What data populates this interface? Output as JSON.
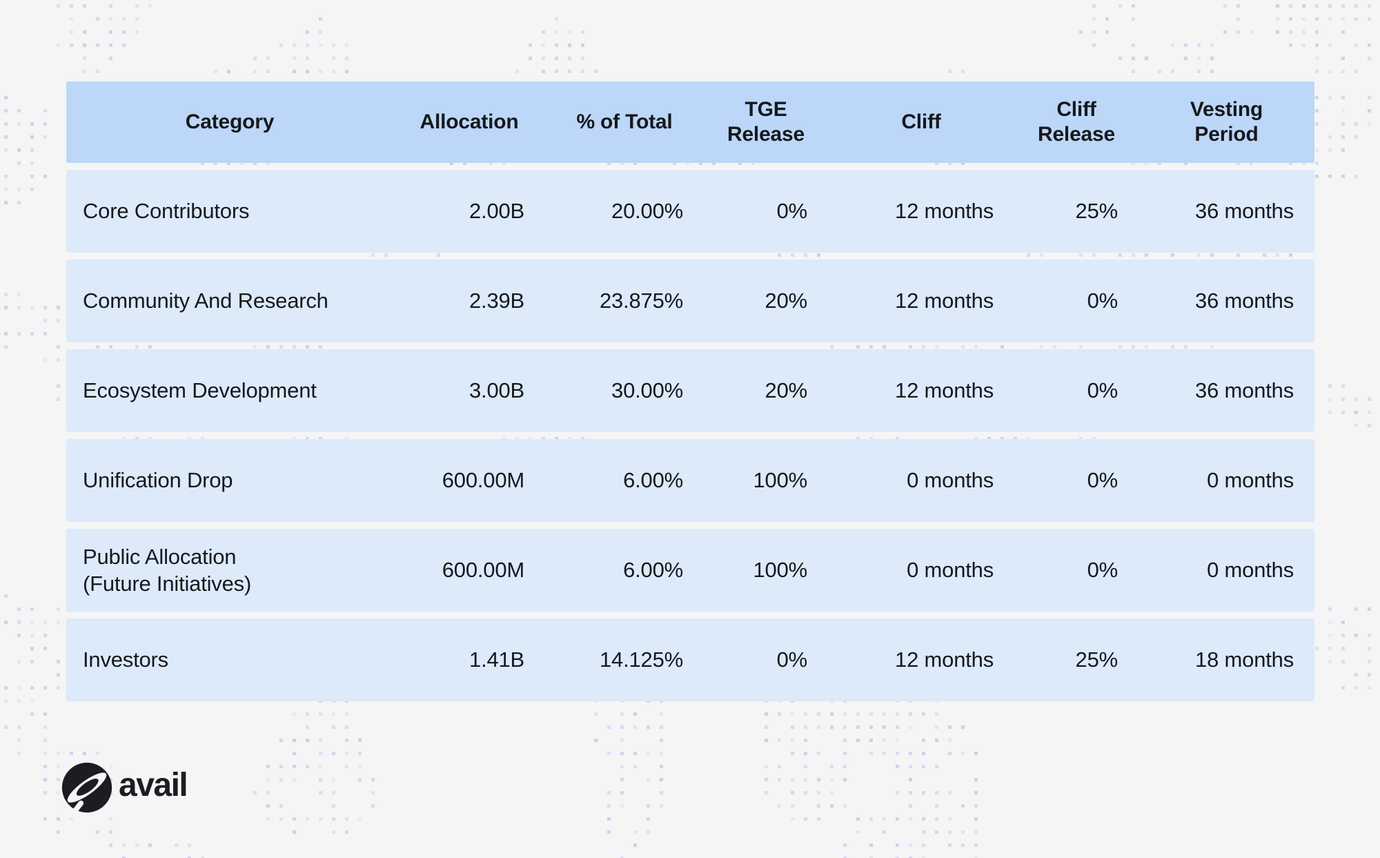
{
  "chart_data": {
    "type": "table",
    "columns": [
      "Category",
      "Allocation",
      "% of Total",
      "TGE\nRelease",
      "Cliff",
      "Cliff\nRelease",
      "Vesting\nPeriod"
    ],
    "rows": [
      [
        "Core Contributors",
        "2.00B",
        "20.00%",
        "0%",
        "12 months",
        "25%",
        "36 months"
      ],
      [
        "Community And Research",
        "2.39B",
        "23.875%",
        "20%",
        "12 months",
        "0%",
        "36 months"
      ],
      [
        "Ecosystem Development",
        "3.00B",
        "30.00%",
        "20%",
        "12 months",
        "0%",
        "36 months"
      ],
      [
        "Unification Drop",
        "600.00M",
        "6.00%",
        "100%",
        "0 months",
        "0%",
        "0 months"
      ],
      [
        "Public Allocation\n(Future Initiatives)",
        "600.00M",
        "6.00%",
        "100%",
        "0 months",
        "0%",
        "0 months"
      ],
      [
        "Investors",
        "1.41B",
        "14.125%",
        "0%",
        "12 months",
        "25%",
        "18 months"
      ]
    ]
  },
  "branding": {
    "logo_text": "avail"
  },
  "colors": {
    "page_bg": "#f5f5f6",
    "dot": "#c8cee9",
    "header_bg": "#bcd7f7",
    "row_bg": "#dceafa",
    "text": "#16181d",
    "logo": "#1c1c23"
  }
}
